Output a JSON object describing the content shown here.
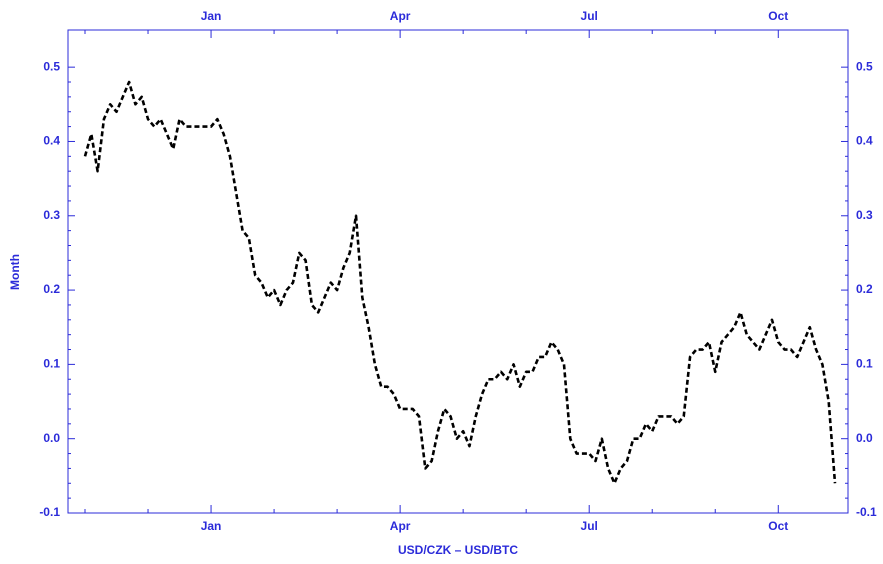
{
  "chart_data": {
    "type": "line",
    "xlabel": "USD/CZK – USD/BTC",
    "ylabel": "Month",
    "categories": [
      null,
      null,
      null,
      null,
      null,
      null,
      null,
      null,
      null,
      null,
      null,
      null,
      null,
      null,
      null,
      null,
      null,
      null,
      null,
      null,
      "Jan",
      null,
      null,
      null,
      null,
      null,
      null,
      null,
      null,
      null,
      null,
      null,
      null,
      null,
      null,
      null,
      null,
      null,
      null,
      null,
      null,
      null,
      null,
      null,
      null,
      null,
      null,
      null,
      null,
      null,
      "Apr",
      null,
      null,
      null,
      null,
      null,
      null,
      null,
      null,
      null,
      null,
      null,
      null,
      null,
      null,
      null,
      null,
      null,
      null,
      null,
      null,
      null,
      null,
      null,
      null,
      null,
      null,
      null,
      null,
      null,
      "Jul",
      null,
      null,
      null,
      null,
      null,
      null,
      null,
      null,
      null,
      null,
      null,
      null,
      null,
      null,
      null,
      null,
      null,
      null,
      null,
      null,
      null,
      null,
      null,
      null,
      null,
      null,
      null,
      null,
      null,
      "Oct",
      null,
      null,
      null,
      null,
      null,
      null,
      null,
      null,
      null
    ],
    "series": [
      {
        "name": null,
        "color": "#000000",
        "values": [
          0.38,
          0.41,
          0.36,
          0.43,
          0.45,
          0.44,
          0.46,
          0.48,
          0.45,
          0.46,
          0.43,
          0.42,
          0.43,
          0.41,
          0.39,
          0.43,
          0.42,
          0.42,
          0.42,
          0.42,
          0.42,
          0.43,
          0.41,
          0.38,
          0.33,
          0.28,
          0.27,
          0.22,
          0.21,
          0.19,
          0.2,
          0.18,
          0.2,
          0.21,
          0.25,
          0.24,
          0.18,
          0.17,
          0.19,
          0.21,
          0.2,
          0.23,
          0.25,
          0.3,
          0.19,
          0.15,
          0.1,
          0.07,
          0.07,
          0.06,
          0.04,
          0.04,
          0.04,
          0.03,
          -0.04,
          -0.03,
          0.01,
          0.04,
          0.03,
          0.0,
          0.01,
          -0.01,
          0.03,
          0.06,
          0.08,
          0.08,
          0.09,
          0.08,
          0.1,
          0.07,
          0.09,
          0.09,
          0.11,
          0.11,
          0.13,
          0.12,
          0.1,
          0.0,
          -0.02,
          -0.02,
          -0.02,
          -0.03,
          0.0,
          -0.04,
          -0.06,
          -0.04,
          -0.03,
          0.0,
          0.0,
          0.02,
          0.01,
          0.03,
          0.03,
          0.03,
          0.02,
          0.03,
          0.11,
          0.12,
          0.12,
          0.13,
          0.09,
          0.13,
          0.14,
          0.15,
          0.17,
          0.14,
          0.13,
          0.12,
          0.14,
          0.16,
          0.13,
          0.12,
          0.12,
          0.11,
          0.13,
          0.15,
          0.12,
          0.1,
          0.05,
          -0.06
        ]
      }
    ],
    "ylim": [
      -0.1,
      0.55
    ],
    "yticks": [
      -0.1,
      {
        "value": 0,
        "label": "0.0"
      },
      0.1,
      0.2,
      0.3,
      0.4,
      0.5
    ],
    "axis_color": "#2b2bd9"
  }
}
